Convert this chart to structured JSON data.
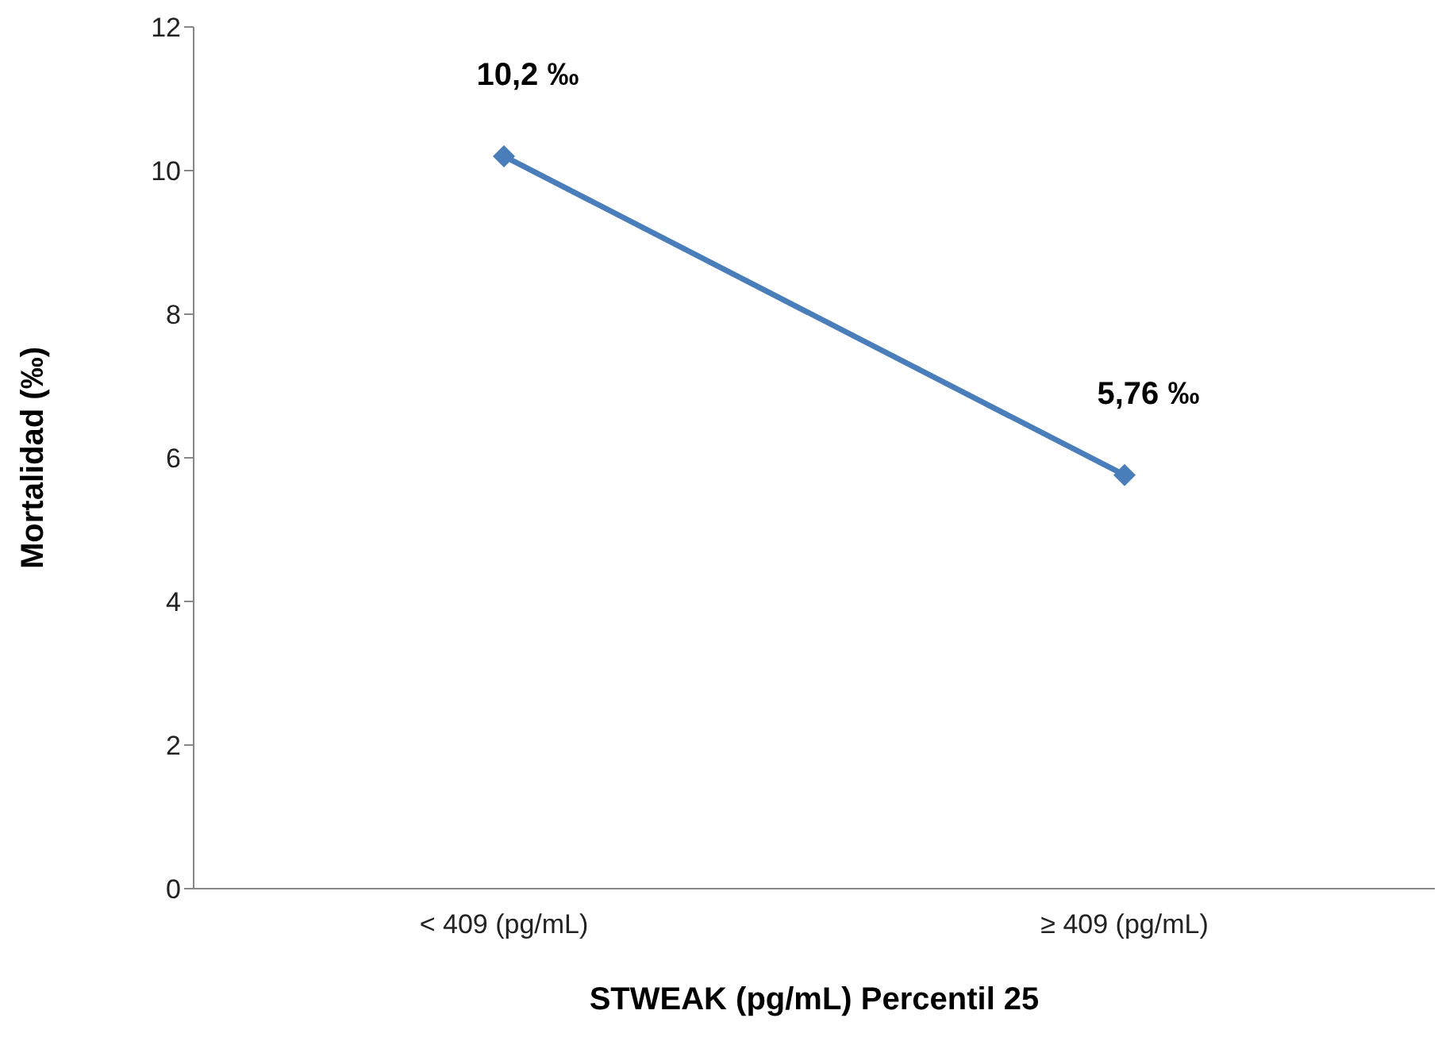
{
  "chart_data": {
    "type": "line",
    "xlabel": "STWEAK (pg/mL) Percentil 25",
    "ylabel": "Mortalidad (‰)",
    "categories": [
      "< 409 (pg/mL)",
      "≥ 409 (pg/mL)"
    ],
    "values": [
      10.2,
      5.76
    ],
    "value_labels": [
      "10,2  ‰",
      "5,76  ‰"
    ],
    "color": "#4a7ebb",
    "ylim": [
      0,
      12
    ],
    "yticks": [
      0,
      2,
      4,
      6,
      8,
      10,
      12
    ],
    "grid": false,
    "marker": "diamond"
  }
}
